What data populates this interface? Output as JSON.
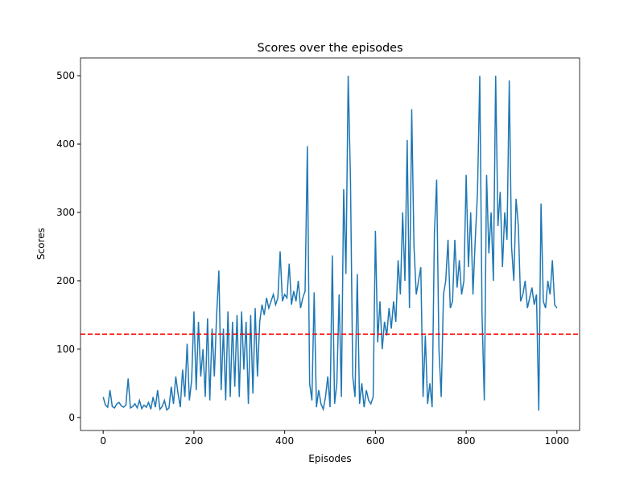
{
  "chart_data": {
    "type": "line",
    "title": "Scores over the episodes",
    "x_label": "Episodes",
    "y_label": "Scores",
    "x": [
      0,
      5,
      10,
      15,
      20,
      25,
      30,
      35,
      40,
      45,
      50,
      55,
      60,
      65,
      70,
      75,
      80,
      85,
      90,
      95,
      100,
      105,
      110,
      115,
      120,
      125,
      130,
      135,
      140,
      145,
      150,
      155,
      160,
      165,
      170,
      175,
      180,
      185,
      190,
      195,
      200,
      205,
      210,
      215,
      220,
      225,
      230,
      235,
      240,
      245,
      250,
      255,
      260,
      265,
      270,
      275,
      280,
      285,
      290,
      295,
      300,
      305,
      310,
      315,
      320,
      325,
      330,
      335,
      340,
      345,
      350,
      355,
      360,
      365,
      370,
      375,
      380,
      385,
      390,
      395,
      400,
      405,
      410,
      415,
      420,
      425,
      430,
      435,
      440,
      445,
      450,
      455,
      460,
      465,
      470,
      475,
      480,
      485,
      490,
      495,
      500,
      505,
      510,
      515,
      520,
      525,
      530,
      535,
      540,
      545,
      550,
      555,
      560,
      565,
      570,
      575,
      580,
      585,
      590,
      595,
      600,
      605,
      610,
      615,
      620,
      625,
      630,
      635,
      640,
      645,
      650,
      655,
      660,
      665,
      670,
      675,
      680,
      685,
      690,
      695,
      700,
      705,
      710,
      715,
      720,
      725,
      730,
      735,
      740,
      745,
      750,
      755,
      760,
      765,
      770,
      775,
      780,
      785,
      790,
      795,
      800,
      805,
      810,
      815,
      820,
      825,
      830,
      835,
      840,
      845,
      850,
      855,
      860,
      865,
      870,
      875,
      880,
      885,
      890,
      895,
      900,
      905,
      910,
      915,
      920,
      925,
      930,
      935,
      940,
      945,
      950,
      955,
      960,
      965,
      970,
      975,
      980,
      985,
      990,
      995,
      1000
    ],
    "series": [
      {
        "name": "Scores",
        "color": "#1f77b4",
        "values": [
          30,
          18,
          15,
          40,
          16,
          14,
          20,
          22,
          17,
          15,
          18,
          57,
          14,
          16,
          20,
          14,
          25,
          13,
          18,
          15,
          22,
          12,
          30,
          15,
          40,
          12,
          16,
          25,
          11,
          14,
          45,
          20,
          60,
          35,
          15,
          70,
          30,
          108,
          25,
          55,
          155,
          40,
          140,
          60,
          100,
          30,
          145,
          25,
          130,
          60,
          150,
          215,
          40,
          130,
          25,
          155,
          30,
          140,
          45,
          150,
          30,
          155,
          70,
          140,
          20,
          150,
          35,
          160,
          60,
          140,
          165,
          150,
          175,
          160,
          170,
          180,
          165,
          175,
          243,
          170,
          180,
          175,
          225,
          165,
          185,
          170,
          200,
          160,
          175,
          185,
          397,
          50,
          25,
          183,
          15,
          40,
          20,
          12,
          30,
          60,
          15,
          237,
          20,
          50,
          180,
          30,
          334,
          210,
          500,
          350,
          60,
          30,
          210,
          20,
          50,
          15,
          40,
          25,
          20,
          30,
          273,
          110,
          170,
          100,
          140,
          120,
          160,
          130,
          170,
          140,
          230,
          180,
          300,
          200,
          406,
          160,
          451,
          250,
          180,
          200,
          220,
          30,
          120,
          20,
          50,
          15,
          270,
          348,
          100,
          30,
          180,
          200,
          260,
          160,
          170,
          260,
          190,
          230,
          180,
          200,
          355,
          220,
          300,
          180,
          260,
          330,
          500,
          150,
          25,
          355,
          240,
          300,
          200,
          500,
          280,
          330,
          220,
          300,
          260,
          493,
          250,
          200,
          320,
          280,
          170,
          180,
          200,
          160,
          175,
          190,
          165,
          180,
          10,
          313,
          170,
          160,
          200,
          180,
          230,
          165,
          160
        ]
      }
    ],
    "hline": {
      "value": 122,
      "color": "#ff0000",
      "style": "dashed"
    },
    "xlim": [
      -50,
      1050
    ],
    "xticks": [
      0,
      200,
      400,
      600,
      800,
      1000
    ],
    "ylim": [
      -19,
      526
    ],
    "yticks": [
      0,
      100,
      200,
      300,
      400,
      500
    ]
  }
}
